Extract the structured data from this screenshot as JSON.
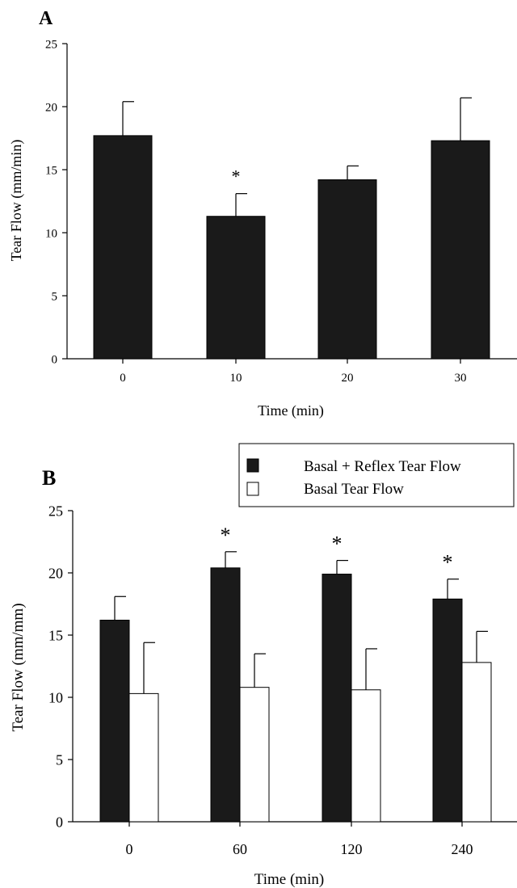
{
  "chart_data": [
    {
      "panel_label": "A",
      "type": "bar",
      "xlabel": "Time (min)",
      "ylabel": "Tear Flow (mm/min)",
      "ylim": [
        0,
        25
      ],
      "yticks": [
        0,
        5,
        10,
        15,
        20,
        25
      ],
      "categories": [
        "0",
        "10",
        "20",
        "30"
      ],
      "series": [
        {
          "values": [
            17.7,
            11.3,
            14.2,
            17.3
          ],
          "errors": [
            2.7,
            1.8,
            1.1,
            3.4
          ],
          "color": "#1a1a1a"
        }
      ],
      "annotations": [
        {
          "category": "10",
          "text": "*"
        }
      ],
      "grid": false
    },
    {
      "panel_label": "B",
      "type": "bar",
      "xlabel": "Time (min)",
      "ylabel": "Tear Flow (mm/mm)",
      "ylim": [
        0,
        25
      ],
      "yticks": [
        0,
        5,
        10,
        15,
        20,
        25
      ],
      "categories": [
        "0",
        "60",
        "120",
        "240"
      ],
      "series": [
        {
          "name": "Basal + Reflex Tear Flow",
          "values": [
            16.2,
            20.4,
            19.9,
            17.9
          ],
          "errors": [
            1.9,
            1.3,
            1.1,
            1.6
          ],
          "color": "#1a1a1a"
        },
        {
          "name": "Basal Tear Flow",
          "values": [
            10.3,
            10.8,
            10.6,
            12.8
          ],
          "errors": [
            4.1,
            2.7,
            3.3,
            2.5
          ],
          "color": "#ffffff"
        }
      ],
      "annotations": [
        {
          "category": "60",
          "text": "*"
        },
        {
          "category": "120",
          "text": "*"
        },
        {
          "category": "240",
          "text": "*"
        }
      ],
      "legend_position": "top-right",
      "grid": false
    }
  ]
}
